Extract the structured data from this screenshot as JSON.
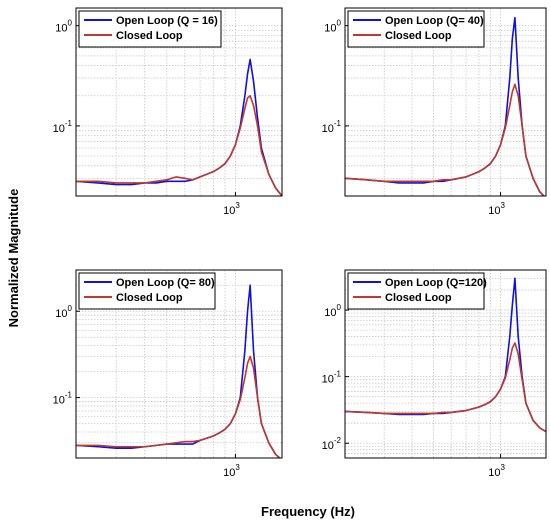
{
  "figure": {
    "ylabel": "Normalized Magnitude",
    "xlabel": "Frequency (Hz)",
    "colors": {
      "open": "#1010e0",
      "closed": "#c0392b",
      "grid": "#c8c8c8"
    }
  },
  "chart_data": [
    {
      "type": "line",
      "x_scale": "log",
      "y_scale": "log",
      "xlim": [
        200,
        1600
      ],
      "ylim": [
        0.02,
        1.5
      ],
      "y_ticks": [
        {
          "value": 1,
          "base": "10",
          "exp": "0"
        },
        {
          "value": 0.1,
          "base": "10",
          "exp": "-1"
        }
      ],
      "x_ticks": [
        {
          "value": 1000,
          "base": "10",
          "exp": "3"
        }
      ],
      "grid": true,
      "legend_position": "top-left",
      "x": [
        200,
        250,
        300,
        350,
        400,
        450,
        500,
        550,
        600,
        650,
        700,
        750,
        800,
        850,
        900,
        950,
        1000,
        1050,
        1100,
        1130,
        1160,
        1200,
        1250,
        1300,
        1400,
        1500,
        1600
      ],
      "series": [
        {
          "name": "Open Loop (Q = 16)",
          "values": [
            0.028,
            0.027,
            0.026,
            0.026,
            0.027,
            0.027,
            0.028,
            0.028,
            0.028,
            0.029,
            0.031,
            0.033,
            0.035,
            0.038,
            0.042,
            0.05,
            0.065,
            0.1,
            0.2,
            0.33,
            0.46,
            0.28,
            0.12,
            0.06,
            0.033,
            0.024,
            0.02
          ]
        },
        {
          "name": "Closed Loop",
          "values": [
            0.028,
            0.028,
            0.027,
            0.027,
            0.027,
            0.028,
            0.029,
            0.031,
            0.03,
            0.029,
            0.031,
            0.033,
            0.035,
            0.038,
            0.042,
            0.05,
            0.065,
            0.095,
            0.15,
            0.19,
            0.2,
            0.16,
            0.1,
            0.055,
            0.033,
            0.024,
            0.02
          ]
        }
      ]
    },
    {
      "type": "line",
      "x_scale": "log",
      "y_scale": "log",
      "xlim": [
        200,
        1600
      ],
      "ylim": [
        0.02,
        1.5
      ],
      "y_ticks": [
        {
          "value": 1,
          "base": "10",
          "exp": "0"
        },
        {
          "value": 0.1,
          "base": "10",
          "exp": "-1"
        }
      ],
      "x_ticks": [
        {
          "value": 1000,
          "base": "10",
          "exp": "3"
        }
      ],
      "grid": true,
      "legend_position": "top-left",
      "x": [
        200,
        250,
        300,
        350,
        400,
        450,
        500,
        550,
        600,
        650,
        700,
        750,
        800,
        850,
        900,
        950,
        1000,
        1050,
        1100,
        1130,
        1160,
        1200,
        1250,
        1300,
        1400,
        1500,
        1600
      ],
      "series": [
        {
          "name": "Open Loop (Q= 40)",
          "values": [
            0.03,
            0.029,
            0.028,
            0.027,
            0.027,
            0.027,
            0.028,
            0.028,
            0.029,
            0.03,
            0.031,
            0.033,
            0.035,
            0.038,
            0.042,
            0.05,
            0.065,
            0.1,
            0.3,
            0.75,
            1.2,
            0.3,
            0.1,
            0.05,
            0.03,
            0.022,
            0.019
          ]
        },
        {
          "name": "Closed Loop",
          "values": [
            0.03,
            0.029,
            0.028,
            0.028,
            0.028,
            0.028,
            0.028,
            0.029,
            0.029,
            0.03,
            0.031,
            0.033,
            0.035,
            0.038,
            0.042,
            0.05,
            0.065,
            0.095,
            0.16,
            0.22,
            0.26,
            0.2,
            0.1,
            0.05,
            0.03,
            0.022,
            0.019
          ]
        }
      ]
    },
    {
      "type": "line",
      "x_scale": "log",
      "y_scale": "log",
      "xlim": [
        200,
        1600
      ],
      "ylim": [
        0.02,
        3
      ],
      "y_ticks": [
        {
          "value": 1,
          "base": "10",
          "exp": "0"
        },
        {
          "value": 0.1,
          "base": "10",
          "exp": "-1"
        }
      ],
      "x_ticks": [
        {
          "value": 1000,
          "base": "10",
          "exp": "3"
        }
      ],
      "grid": true,
      "legend_position": "top-left",
      "x": [
        200,
        250,
        300,
        350,
        400,
        450,
        500,
        550,
        600,
        650,
        700,
        750,
        800,
        850,
        900,
        950,
        1000,
        1050,
        1100,
        1130,
        1160,
        1200,
        1250,
        1300,
        1400,
        1500,
        1600
      ],
      "series": [
        {
          "name": "Open Loop (Q= 80)",
          "values": [
            0.028,
            0.027,
            0.026,
            0.026,
            0.027,
            0.028,
            0.029,
            0.029,
            0.029,
            0.029,
            0.032,
            0.034,
            0.036,
            0.039,
            0.043,
            0.05,
            0.065,
            0.1,
            0.35,
            1.0,
            2.0,
            0.35,
            0.1,
            0.05,
            0.03,
            0.022,
            0.019
          ]
        },
        {
          "name": "Closed Loop",
          "values": [
            0.028,
            0.028,
            0.027,
            0.027,
            0.027,
            0.028,
            0.029,
            0.03,
            0.031,
            0.031,
            0.032,
            0.034,
            0.036,
            0.039,
            0.043,
            0.05,
            0.065,
            0.095,
            0.17,
            0.25,
            0.3,
            0.22,
            0.1,
            0.05,
            0.03,
            0.022,
            0.019
          ]
        }
      ]
    },
    {
      "type": "line",
      "x_scale": "log",
      "y_scale": "log",
      "xlim": [
        200,
        1600
      ],
      "ylim": [
        0.006,
        4
      ],
      "y_ticks": [
        {
          "value": 1,
          "base": "10",
          "exp": "0"
        },
        {
          "value": 0.1,
          "base": "10",
          "exp": "-1"
        },
        {
          "value": 0.01,
          "base": "10",
          "exp": "-2"
        }
      ],
      "x_ticks": [
        {
          "value": 1000,
          "base": "10",
          "exp": "3"
        }
      ],
      "grid": true,
      "legend_position": "top-left",
      "x": [
        200,
        250,
        300,
        350,
        400,
        450,
        500,
        550,
        600,
        650,
        700,
        750,
        800,
        850,
        900,
        950,
        1000,
        1050,
        1100,
        1130,
        1160,
        1200,
        1250,
        1300,
        1400,
        1500,
        1600
      ],
      "series": [
        {
          "name": "Open Loop (Q=120)",
          "values": [
            0.03,
            0.029,
            0.028,
            0.027,
            0.027,
            0.027,
            0.028,
            0.028,
            0.029,
            0.03,
            0.031,
            0.033,
            0.035,
            0.038,
            0.042,
            0.05,
            0.065,
            0.1,
            0.4,
            1.2,
            3.0,
            0.4,
            0.1,
            0.04,
            0.022,
            0.017,
            0.015
          ]
        },
        {
          "name": "Closed Loop",
          "values": [
            0.03,
            0.029,
            0.028,
            0.028,
            0.028,
            0.028,
            0.028,
            0.029,
            0.029,
            0.03,
            0.031,
            0.033,
            0.035,
            0.038,
            0.042,
            0.05,
            0.065,
            0.095,
            0.18,
            0.27,
            0.32,
            0.22,
            0.09,
            0.04,
            0.022,
            0.017,
            0.015
          ]
        }
      ]
    }
  ]
}
